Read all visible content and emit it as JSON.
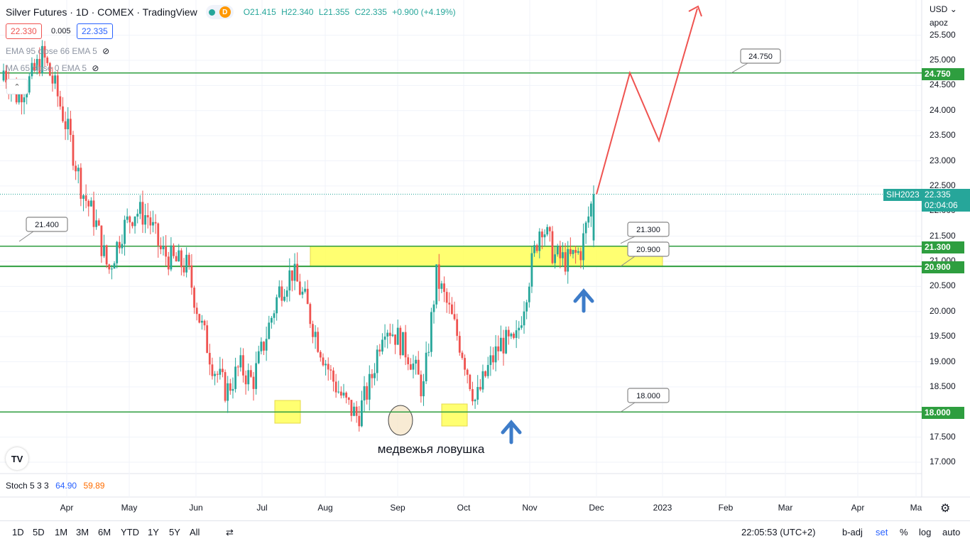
{
  "header": {
    "title": "Silver Futures · 1D · COMEX · TradingView",
    "badge_d": "D",
    "ohlc": {
      "o": "O21.415",
      "h": "H22.340",
      "l": "L21.355",
      "c": "C22.335",
      "chg": "+0.900 (+4.19%)"
    },
    "bid": "22.330",
    "spread": "0.005",
    "ask": "22.335"
  },
  "indicators": {
    "ema": "EMA 95 close 66 EMA 5",
    "ma": "MA 65 close 0 EMA 5",
    "collapse_glyph": "⌃"
  },
  "axis_header": {
    "currency": "USD",
    "user": "apoz"
  },
  "y_ticks": [
    "25.500",
    "25.000",
    "24.500",
    "24.000",
    "23.500",
    "23.000",
    "22.500",
    "22.000",
    "21.500",
    "21.000",
    "20.500",
    "20.000",
    "19.500",
    "19.000",
    "18.500",
    "18.000",
    "17.500",
    "17.000"
  ],
  "x_ticks": [
    "Apr",
    "May",
    "Jun",
    "Jul",
    "Aug",
    "Sep",
    "Oct",
    "Nov",
    "Dec",
    "2023",
    "Feb",
    "Mar",
    "Apr",
    "Ma"
  ],
  "price_tags": {
    "symbol": "SIH2023",
    "last": "22.335",
    "countdown": "02:04:06",
    "lvl_24750": "24.750",
    "lvl_21300": "21.300",
    "lvl_20900": "20.900",
    "lvl_18000": "18.000"
  },
  "callouts": {
    "c21400": "21.400",
    "c24750": "24.750",
    "c21300": "21.300",
    "c20900": "20.900",
    "c18000": "18.000"
  },
  "annotation_text": "медвежья ловушка",
  "stoch": {
    "label": "Stoch 5 3 3",
    "k": "64.90",
    "d": "59.89"
  },
  "bottom": {
    "ranges": [
      "1D",
      "5D",
      "1M",
      "3M",
      "6M",
      "YTD",
      "1Y",
      "5Y",
      "All"
    ],
    "time": "22:05:53 (UTC+2)",
    "badj": "b-adj",
    "set": "set",
    "pct": "%",
    "log": "log",
    "auto": "auto"
  },
  "colors": {
    "up": "#26a69a",
    "down": "#ef5350",
    "level_line": "#2e9e3f",
    "zone": "#ffff4d",
    "forecast": "#ef5350",
    "arrow": "#3d7cc9"
  },
  "chart_data": {
    "type": "candlestick",
    "symbol": "SIH2023",
    "ylim": [
      16.8,
      26.0
    ],
    "last_price": 22.335,
    "horizontal_levels": [
      24.75,
      21.3,
      20.9,
      18.0
    ],
    "forecast_path": [
      22.335,
      24.75,
      23.4,
      26.4
    ],
    "candles_sampled_close": [
      24.8,
      24.3,
      24.6,
      25.1,
      24.4,
      23.5,
      22.4,
      21.8,
      20.8,
      21.6,
      22.0,
      21.9,
      21.2,
      21.0,
      20.9,
      19.8,
      18.9,
      18.4,
      18.9,
      18.6,
      19.5,
      20.4,
      20.8,
      20.2,
      19.4,
      18.7,
      18.2,
      17.9,
      18.6,
      19.8,
      19.5,
      19.1,
      18.4,
      20.7,
      20.0,
      19.2,
      18.2,
      18.9,
      19.4,
      19.3,
      20.6,
      21.8,
      21.1,
      21.0,
      21.2,
      22.335
    ]
  }
}
